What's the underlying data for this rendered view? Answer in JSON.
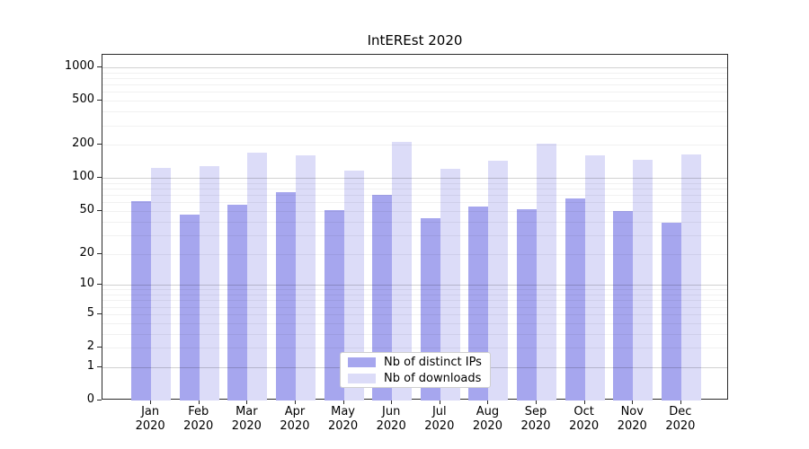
{
  "chart_data": {
    "type": "bar",
    "title": "IntEREst 2020",
    "categories": [
      "Jan",
      "Feb",
      "Mar",
      "Apr",
      "May",
      "Jun",
      "Jul",
      "Aug",
      "Sep",
      "Oct",
      "Nov",
      "Dec"
    ],
    "year": "2020",
    "series": [
      {
        "key": "distinct-ips",
        "name": "Nb of distinct IPs",
        "color": "#a6a6ee",
        "values": [
          62,
          46,
          57,
          74,
          51,
          70,
          43,
          55,
          52,
          65,
          50,
          39
        ]
      },
      {
        "key": "downloads",
        "name": "Nb of downloads",
        "color": "#dcdcf8",
        "values": [
          123,
          127,
          169,
          160,
          116,
          212,
          121,
          142,
          205,
          159,
          146,
          163
        ]
      }
    ],
    "yscale": "log1p",
    "ylim": [
      0,
      1000
    ],
    "yticks": [
      0,
      1,
      2,
      5,
      10,
      20,
      50,
      100,
      200,
      500,
      1000
    ],
    "minor_grid_values": [
      2,
      3,
      4,
      5,
      6,
      7,
      8,
      9,
      20,
      30,
      40,
      50,
      60,
      70,
      80,
      90,
      200,
      300,
      400,
      500,
      600,
      700,
      800,
      900
    ],
    "major_grid_values": [
      1,
      10,
      100,
      1000
    ],
    "grid": "horizontal",
    "legend_position": "inside-bottom-center"
  },
  "colors": {
    "background": "#ffffff",
    "spine": "#2a2a2a",
    "major_grid": "rgba(0,0,0,0.18)",
    "minor_grid": "rgba(0,0,0,0.055)",
    "text": "#000000"
  }
}
